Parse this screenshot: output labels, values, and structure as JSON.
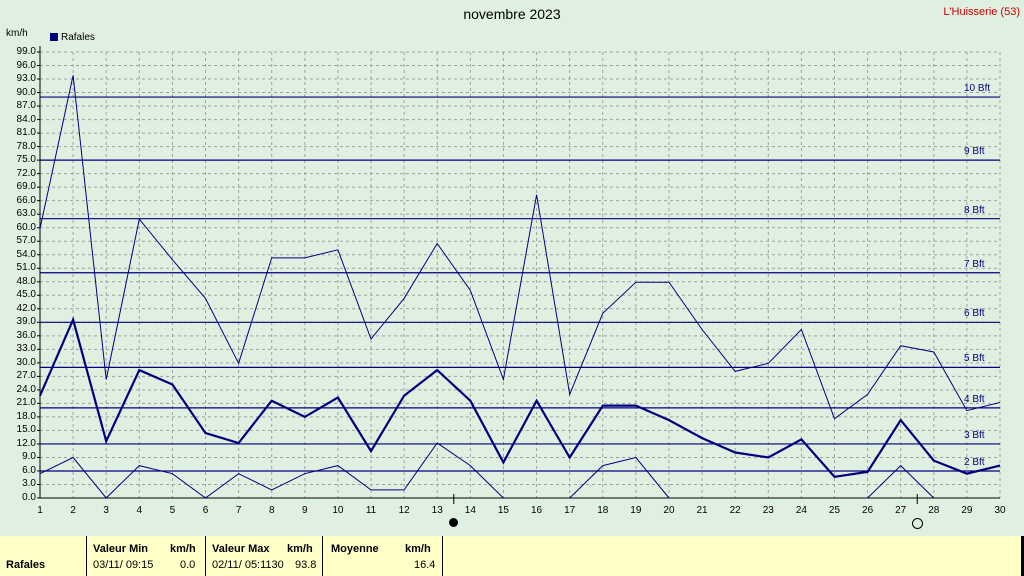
{
  "header": {
    "title": "novembre 2023",
    "station": "L'Huisserie (53)",
    "unit": "km/h",
    "legend_label": "Rafales",
    "legend_color": "#00007f"
  },
  "chart_data": {
    "type": "line",
    "x": [
      1,
      2,
      3,
      4,
      5,
      6,
      7,
      8,
      9,
      10,
      11,
      12,
      13,
      14,
      15,
      16,
      17,
      18,
      19,
      20,
      21,
      22,
      23,
      24,
      25,
      26,
      27,
      28,
      29,
      30
    ],
    "series": [
      {
        "name": "Rafales",
        "role": "average",
        "values": [
          22.7,
          39.6,
          12.6,
          28.4,
          25.2,
          14.4,
          12.2,
          21.6,
          18.0,
          22.3,
          10.4,
          22.7,
          28.4,
          21.6,
          7.9,
          21.6,
          9.0,
          20.5,
          20.5,
          17.3,
          13.3,
          10.1,
          9.0,
          13.0,
          4.7,
          5.8,
          17.3,
          8.3,
          5.4,
          7.2
        ]
      },
      {
        "role": "maximum",
        "values": [
          59.8,
          93.8,
          26.3,
          61.9,
          52.9,
          44.3,
          29.9,
          53.3,
          53.3,
          55.1,
          35.3,
          44.3,
          56.5,
          46.1,
          26.3,
          67.3,
          23.0,
          41.0,
          47.9,
          47.9,
          37.4,
          28.1,
          29.9,
          37.4,
          17.6,
          23.0,
          33.8,
          32.4,
          19.4,
          21.2
        ]
      },
      {
        "role": "minimum",
        "values": [
          5.4,
          9.0,
          0.0,
          7.2,
          5.4,
          0.0,
          5.4,
          1.8,
          5.4,
          7.2,
          1.8,
          1.8,
          12.2,
          7.2,
          0.0,
          null,
          0.0,
          7.2,
          9.0,
          0.0,
          null,
          null,
          null,
          null,
          null,
          0.0,
          7.2,
          0.0,
          null,
          null
        ]
      }
    ],
    "ylim": [
      0,
      99
    ],
    "yticks": [
      "0.0",
      "3.0",
      "6.0",
      "9.0",
      "12.0",
      "15.0",
      "18.0",
      "21.0",
      "24.0",
      "27.0",
      "30.0",
      "33.0",
      "36.0",
      "39.0",
      "42.0",
      "45.0",
      "48.0",
      "51.0",
      "54.0",
      "57.0",
      "60.0",
      "63.0",
      "66.0",
      "69.0",
      "72.0",
      "75.0",
      "78.0",
      "81.0",
      "84.0",
      "87.0",
      "90.0",
      "93.0",
      "96.0",
      "99.0"
    ],
    "xticks": [
      "1",
      "2",
      "3",
      "4",
      "5",
      "6",
      "7",
      "8",
      "9",
      "10",
      "11",
      "12",
      "13",
      "14",
      "15",
      "16",
      "17",
      "18",
      "19",
      "20",
      "21",
      "22",
      "23",
      "24",
      "25",
      "26",
      "27",
      "28",
      "29",
      "30"
    ],
    "beaufort": [
      {
        "label": "2 Bft",
        "value": 6
      },
      {
        "label": "3 Bft",
        "value": 12
      },
      {
        "label": "4 Bft",
        "value": 20
      },
      {
        "label": "5 Bft",
        "value": 29
      },
      {
        "label": "6 Bft",
        "value": 39
      },
      {
        "label": "7 Bft",
        "value": 50
      },
      {
        "label": "8 Bft",
        "value": 62
      },
      {
        "label": "9 Bft",
        "value": 75
      },
      {
        "label": "10 Bft",
        "value": 89
      }
    ],
    "moon_phases": [
      {
        "phase": "new",
        "day": 13.5
      },
      {
        "phase": "full",
        "day": 27.5
      }
    ],
    "grid": true,
    "colors": {
      "line": "#00007f",
      "grid": "#a0a0a0",
      "bft": "#000080"
    }
  },
  "footer": {
    "label": "Rafales",
    "min_header": "Valeur Min",
    "min_unit": "km/h",
    "min_date": "03/11/  09:15",
    "min_value": "0.0",
    "max_header": "Valeur Max",
    "max_unit": "km/h",
    "max_date": "02/11/  05:1130",
    "max_value": "93.8",
    "avg_header": "Moyenne",
    "avg_unit": "km/h",
    "avg_value": "16.4"
  }
}
